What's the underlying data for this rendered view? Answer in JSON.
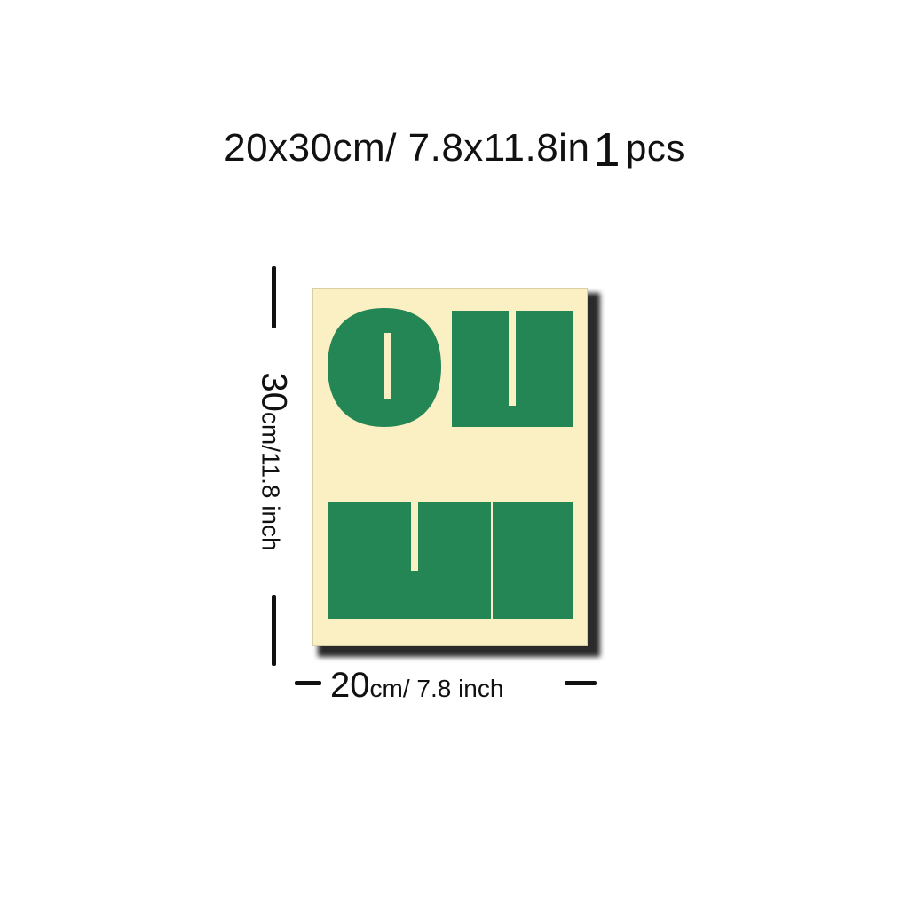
{
  "headline": {
    "size": "20x30cm/ 7.8x11.8in",
    "quantity": "1",
    "quantity_unit": "pcs"
  },
  "poster": {
    "line1": "OH",
    "line2": "HI",
    "background_color": "#fbefc4",
    "letter_color": "#238654"
  },
  "height_dimension": {
    "value": "30",
    "unit_text": "cm/11.8 inch"
  },
  "width_dimension": {
    "value": "20",
    "unit_text": "cm/ 7.8 inch"
  }
}
